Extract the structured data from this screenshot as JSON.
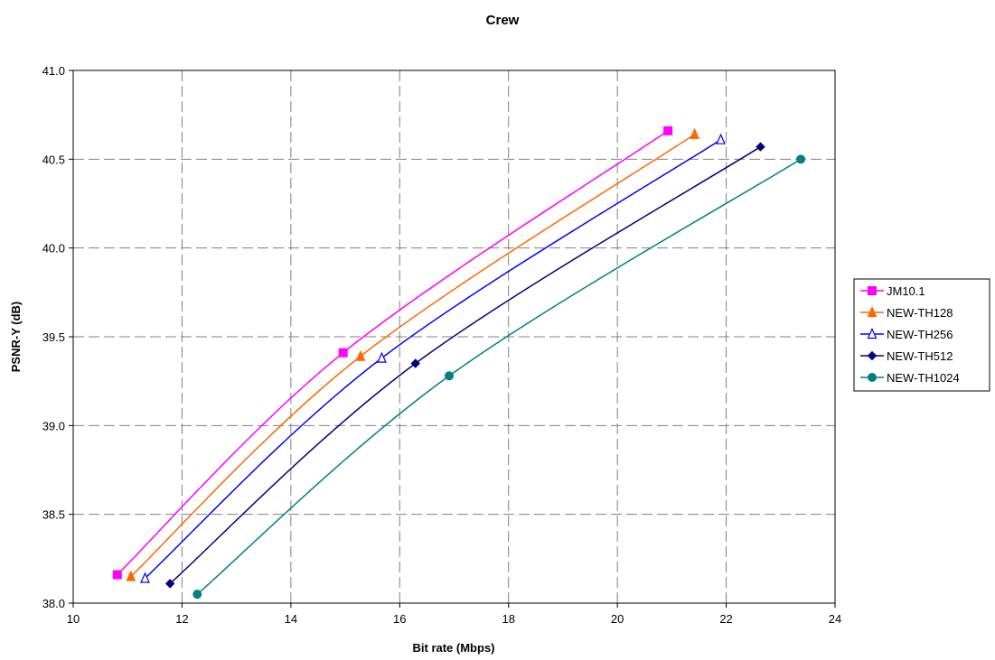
{
  "chart_data": {
    "type": "line",
    "title": "Crew",
    "xlabel": "Bit rate (Mbps)",
    "ylabel": "PSNR-Y (dB)",
    "xlim": [
      10,
      24
    ],
    "ylim": [
      38.0,
      41.0
    ],
    "xticks": [
      "10",
      "12",
      "14",
      "16",
      "18",
      "20",
      "22",
      "24"
    ],
    "yticks": [
      "38.0",
      "38.5",
      "39.0",
      "39.5",
      "40.0",
      "40.5",
      "41.0"
    ],
    "grid": true,
    "grid_style": "dashed",
    "legend_position": "right",
    "series": [
      {
        "name": "JM10.1",
        "color": "#ff00ff",
        "marker": "square",
        "x": [
          10.81,
          14.96,
          20.93
        ],
        "y": [
          38.16,
          39.41,
          40.66
        ]
      },
      {
        "name": "NEW-TH128",
        "color": "#ff6600",
        "marker": "triangle",
        "x": [
          11.06,
          15.28,
          21.42
        ],
        "y": [
          38.15,
          39.39,
          40.64
        ]
      },
      {
        "name": "NEW-TH256",
        "color": "#0000ff",
        "marker": "triangle-open",
        "x": [
          11.32,
          15.67,
          21.9
        ],
        "y": [
          38.14,
          39.38,
          40.61
        ]
      },
      {
        "name": "NEW-TH512",
        "color": "#000080",
        "marker": "diamond",
        "x": [
          11.78,
          16.29,
          22.63
        ],
        "y": [
          38.11,
          39.35,
          40.57
        ]
      },
      {
        "name": "NEW-TH1024",
        "color": "#008080",
        "marker": "circle",
        "x": [
          12.28,
          16.91,
          23.37
        ],
        "y": [
          38.05,
          39.28,
          40.5
        ]
      }
    ]
  }
}
